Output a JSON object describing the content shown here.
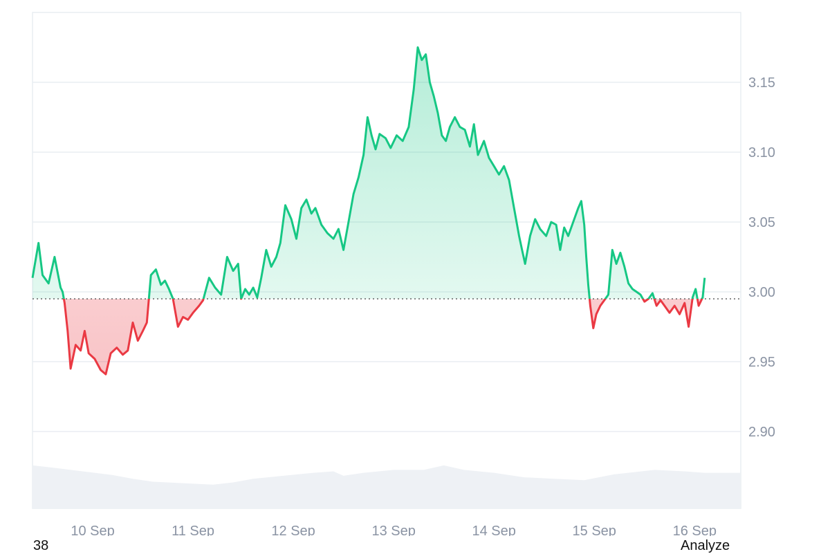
{
  "chart_data": {
    "type": "area",
    "baseline": 2.995,
    "ylim": [
      2.845,
      3.2
    ],
    "y_ticks": [
      "2.90",
      "2.95",
      "3.00",
      "3.05",
      "3.10",
      "3.15"
    ],
    "y_tick_values": [
      2.9,
      2.95,
      3.0,
      3.05,
      3.1,
      3.15
    ],
    "x_ticks": [
      "10 Sep",
      "11 Sep",
      "12 Sep",
      "13 Sep",
      "14 Sep",
      "15 Sep",
      "16 Sep"
    ],
    "x_tick_values": [
      0.6,
      1.6,
      2.6,
      3.6,
      4.6,
      5.6,
      6.6
    ],
    "xlim": [
      0,
      7.06
    ],
    "colors": {
      "up": "#16c784",
      "down": "#ea3943",
      "grid": "#e9edf2",
      "volume": "#eef1f5",
      "baseline": "#555555"
    },
    "series": [
      {
        "values": [
          [
            0.0,
            3.01
          ],
          [
            0.06,
            3.035
          ],
          [
            0.1,
            3.012
          ],
          [
            0.16,
            3.006
          ],
          [
            0.22,
            3.025
          ],
          [
            0.28,
            3.003
          ],
          [
            0.3,
            3.0
          ],
          [
            0.32,
            2.992
          ],
          [
            0.35,
            2.972
          ],
          [
            0.38,
            2.945
          ],
          [
            0.43,
            2.962
          ],
          [
            0.48,
            2.958
          ],
          [
            0.52,
            2.972
          ],
          [
            0.56,
            2.956
          ],
          [
            0.62,
            2.952
          ],
          [
            0.68,
            2.944
          ],
          [
            0.73,
            2.941
          ],
          [
            0.78,
            2.956
          ],
          [
            0.84,
            2.96
          ],
          [
            0.9,
            2.955
          ],
          [
            0.95,
            2.958
          ],
          [
            1.0,
            2.978
          ],
          [
            1.05,
            2.965
          ],
          [
            1.1,
            2.972
          ],
          [
            1.14,
            2.978
          ],
          [
            1.18,
            3.012
          ],
          [
            1.23,
            3.016
          ],
          [
            1.28,
            3.005
          ],
          [
            1.32,
            3.008
          ],
          [
            1.36,
            3.002
          ],
          [
            1.4,
            2.995
          ],
          [
            1.45,
            2.975
          ],
          [
            1.5,
            2.982
          ],
          [
            1.55,
            2.98
          ],
          [
            1.6,
            2.985
          ],
          [
            1.66,
            2.99
          ],
          [
            1.7,
            2.994
          ],
          [
            1.76,
            3.01
          ],
          [
            1.82,
            3.003
          ],
          [
            1.88,
            2.998
          ],
          [
            1.94,
            3.025
          ],
          [
            2.0,
            3.015
          ],
          [
            2.05,
            3.02
          ],
          [
            2.08,
            2.995
          ],
          [
            2.12,
            3.002
          ],
          [
            2.16,
            2.998
          ],
          [
            2.2,
            3.003
          ],
          [
            2.24,
            2.996
          ],
          [
            2.28,
            3.01
          ],
          [
            2.33,
            3.03
          ],
          [
            2.38,
            3.018
          ],
          [
            2.43,
            3.025
          ],
          [
            2.47,
            3.035
          ],
          [
            2.52,
            3.062
          ],
          [
            2.58,
            3.052
          ],
          [
            2.63,
            3.038
          ],
          [
            2.68,
            3.06
          ],
          [
            2.73,
            3.066
          ],
          [
            2.78,
            3.056
          ],
          [
            2.82,
            3.06
          ],
          [
            2.88,
            3.048
          ],
          [
            2.94,
            3.042
          ],
          [
            3.0,
            3.038
          ],
          [
            3.05,
            3.045
          ],
          [
            3.1,
            3.03
          ],
          [
            3.15,
            3.05
          ],
          [
            3.2,
            3.07
          ],
          [
            3.25,
            3.082
          ],
          [
            3.3,
            3.098
          ],
          [
            3.34,
            3.125
          ],
          [
            3.38,
            3.112
          ],
          [
            3.42,
            3.102
          ],
          [
            3.46,
            3.113
          ],
          [
            3.52,
            3.11
          ],
          [
            3.57,
            3.103
          ],
          [
            3.63,
            3.112
          ],
          [
            3.69,
            3.108
          ],
          [
            3.75,
            3.118
          ],
          [
            3.8,
            3.145
          ],
          [
            3.84,
            3.175
          ],
          [
            3.88,
            3.166
          ],
          [
            3.92,
            3.17
          ],
          [
            3.96,
            3.15
          ],
          [
            4.0,
            3.14
          ],
          [
            4.04,
            3.128
          ],
          [
            4.08,
            3.112
          ],
          [
            4.12,
            3.108
          ],
          [
            4.16,
            3.118
          ],
          [
            4.21,
            3.125
          ],
          [
            4.26,
            3.118
          ],
          [
            4.31,
            3.116
          ],
          [
            4.36,
            3.104
          ],
          [
            4.4,
            3.12
          ],
          [
            4.44,
            3.098
          ],
          [
            4.5,
            3.108
          ],
          [
            4.55,
            3.096
          ],
          [
            4.6,
            3.09
          ],
          [
            4.65,
            3.084
          ],
          [
            4.7,
            3.09
          ],
          [
            4.75,
            3.08
          ],
          [
            4.8,
            3.06
          ],
          [
            4.85,
            3.04
          ],
          [
            4.88,
            3.03
          ],
          [
            4.91,
            3.02
          ],
          [
            4.96,
            3.04
          ],
          [
            5.01,
            3.052
          ],
          [
            5.06,
            3.045
          ],
          [
            5.12,
            3.04
          ],
          [
            5.17,
            3.05
          ],
          [
            5.22,
            3.048
          ],
          [
            5.26,
            3.03
          ],
          [
            5.3,
            3.046
          ],
          [
            5.34,
            3.04
          ],
          [
            5.4,
            3.052
          ],
          [
            5.44,
            3.06
          ],
          [
            5.47,
            3.065
          ],
          [
            5.5,
            3.048
          ],
          [
            5.52,
            3.025
          ],
          [
            5.54,
            3.005
          ],
          [
            5.56,
            2.99
          ],
          [
            5.59,
            2.974
          ],
          [
            5.62,
            2.984
          ],
          [
            5.66,
            2.99
          ],
          [
            5.7,
            2.994
          ],
          [
            5.74,
            2.998
          ],
          [
            5.78,
            3.03
          ],
          [
            5.82,
            3.02
          ],
          [
            5.86,
            3.028
          ],
          [
            5.9,
            3.018
          ],
          [
            5.94,
            3.006
          ],
          [
            5.98,
            3.002
          ],
          [
            6.02,
            3.0
          ],
          [
            6.06,
            2.998
          ],
          [
            6.1,
            2.993
          ],
          [
            6.14,
            2.995
          ],
          [
            6.18,
            2.999
          ],
          [
            6.22,
            2.99
          ],
          [
            6.26,
            2.994
          ],
          [
            6.3,
            2.99
          ],
          [
            6.35,
            2.985
          ],
          [
            6.4,
            2.99
          ],
          [
            6.45,
            2.984
          ],
          [
            6.5,
            2.992
          ],
          [
            6.54,
            2.975
          ],
          [
            6.58,
            2.996
          ],
          [
            6.61,
            3.002
          ],
          [
            6.64,
            2.99
          ],
          [
            6.68,
            2.996
          ],
          [
            6.7,
            3.01
          ]
        ]
      }
    ],
    "volume": [
      [
        0.0,
        0.58
      ],
      [
        0.2,
        0.55
      ],
      [
        0.5,
        0.5
      ],
      [
        0.8,
        0.45
      ],
      [
        1.0,
        0.4
      ],
      [
        1.2,
        0.36
      ],
      [
        1.5,
        0.34
      ],
      [
        1.8,
        0.32
      ],
      [
        2.0,
        0.35
      ],
      [
        2.2,
        0.4
      ],
      [
        2.5,
        0.44
      ],
      [
        2.8,
        0.48
      ],
      [
        3.0,
        0.5
      ],
      [
        3.1,
        0.44
      ],
      [
        3.3,
        0.48
      ],
      [
        3.6,
        0.52
      ],
      [
        3.9,
        0.52
      ],
      [
        4.1,
        0.58
      ],
      [
        4.3,
        0.52
      ],
      [
        4.6,
        0.48
      ],
      [
        4.9,
        0.42
      ],
      [
        5.2,
        0.4
      ],
      [
        5.5,
        0.38
      ],
      [
        5.8,
        0.46
      ],
      [
        6.2,
        0.52
      ],
      [
        6.5,
        0.5
      ],
      [
        6.7,
        0.48
      ],
      [
        7.06,
        0.48
      ]
    ]
  },
  "footer": {
    "left_text": "38",
    "right_text": "Analyze"
  }
}
